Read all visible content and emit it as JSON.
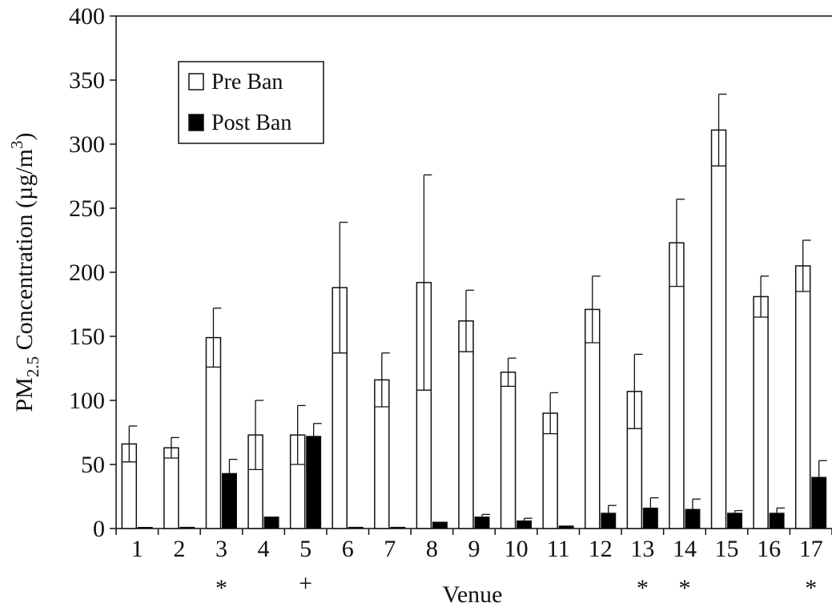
{
  "chart_data": {
    "type": "bar",
    "xlabel": "Venue",
    "ylabel_main": "PM",
    "ylabel_sub": "2.5",
    "ylabel_rest": " Concentration (µg/m",
    "ylabel_sup": "3",
    "ylabel_end": ")",
    "ylim": [
      0,
      400
    ],
    "yticks": [
      0,
      50,
      100,
      150,
      200,
      250,
      300,
      350,
      400
    ],
    "categories": [
      "1",
      "2",
      "3",
      "4",
      "5",
      "6",
      "7",
      "8",
      "9",
      "10",
      "11",
      "12",
      "13",
      "14",
      "15",
      "16",
      "17"
    ],
    "markers": [
      "",
      "",
      "*",
      "",
      "+",
      "",
      "",
      "",
      "",
      "",
      "",
      "",
      "*",
      "*",
      "",
      "",
      "*"
    ],
    "legend_position": "top-left",
    "grid": false,
    "series": [
      {
        "name": "Pre Ban",
        "fill": "#ffffff",
        "values": [
          66,
          63,
          149,
          73,
          73,
          188,
          116,
          192,
          162,
          122,
          90,
          171,
          107,
          223,
          311,
          181,
          205
        ],
        "error": [
          14,
          8,
          23,
          27,
          23,
          51,
          21,
          84,
          24,
          11,
          16,
          26,
          29,
          34,
          28,
          16,
          20
        ]
      },
      {
        "name": "Post Ban",
        "fill": "#000000",
        "values": [
          0,
          1,
          43,
          9,
          72,
          1,
          1,
          5,
          9,
          6,
          2,
          12,
          16,
          15,
          12,
          12,
          40
        ],
        "error": [
          0,
          0,
          11,
          0,
          10,
          0,
          0,
          0,
          2,
          2,
          0,
          6,
          8,
          8,
          2,
          4,
          13
        ]
      }
    ]
  }
}
